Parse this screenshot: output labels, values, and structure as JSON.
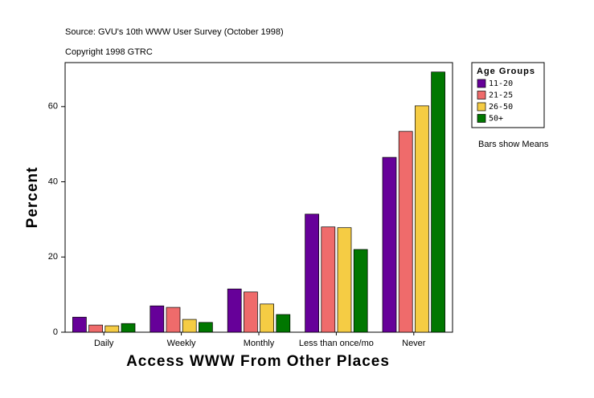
{
  "chart_data": {
    "type": "bar",
    "source": "Source: GVU's 10th WWW User Survey (October 1998)",
    "copyright": "Copyright 1998 GTRC",
    "x_label": "Access WWW From Other Places",
    "y_label": "Percent",
    "legend_title": "Age Groups",
    "note": "Bars show Means",
    "categories": [
      "Daily",
      "Weekly",
      "Monthly",
      "Less than once/mo",
      "Never"
    ],
    "series": [
      {
        "name": "11-20",
        "color": "#660099",
        "values": [
          4.0,
          7.0,
          11.5,
          31.4,
          46.5
        ]
      },
      {
        "name": "21-25",
        "color": "#ef6b6b",
        "values": [
          1.9,
          6.6,
          10.7,
          28.0,
          53.4
        ]
      },
      {
        "name": "26-50",
        "color": "#f5cc44",
        "values": [
          1.7,
          3.4,
          7.5,
          27.8,
          60.2
        ]
      },
      {
        "name": "50+",
        "color": "#007700",
        "values": [
          2.3,
          2.6,
          4.7,
          22.0,
          69.2
        ]
      }
    ],
    "ylim": [
      0,
      71.7
    ],
    "yticks": [
      0,
      20,
      40,
      60
    ],
    "grid": false
  }
}
